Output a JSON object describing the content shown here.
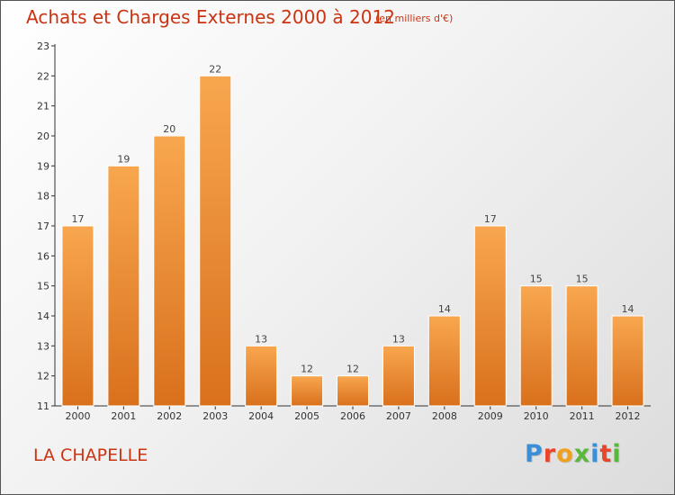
{
  "header": {
    "title": "Achats et Charges Externes 2000 à 2012",
    "subtitle": "(en milliers d'€)"
  },
  "footer": {
    "commune": "LA CHAPELLE",
    "logo_text": "Proxiti",
    "logo_letters": [
      "P",
      "r",
      "o",
      "x",
      "i",
      "t",
      "i"
    ],
    "logo_colors": [
      "#3a8fd6",
      "#e8452c",
      "#f0a020",
      "#58b83a",
      "#3a8fd6",
      "#e8452c",
      "#58b83a"
    ]
  },
  "colors": {
    "bar_top": "#f8a74f",
    "bar_bottom": "#d9701c",
    "bar_edge": "#ffffff",
    "accent": "#cc3311"
  },
  "chart_data": {
    "type": "bar",
    "title": "Achats et Charges Externes 2000 à 2012",
    "subtitle": "(en milliers d'€)",
    "categories": [
      "2000",
      "2001",
      "2002",
      "2003",
      "2004",
      "2005",
      "2006",
      "2007",
      "2008",
      "2009",
      "2010",
      "2011",
      "2012"
    ],
    "values": [
      17,
      19,
      20,
      22,
      13,
      12,
      12,
      13,
      14,
      17,
      15,
      15,
      14
    ],
    "ylim": [
      11,
      23
    ],
    "yticks": [
      11,
      12,
      13,
      14,
      15,
      16,
      17,
      18,
      19,
      20,
      21,
      22,
      23
    ],
    "grid": false,
    "legend": "none",
    "xlabel": "",
    "ylabel": ""
  }
}
